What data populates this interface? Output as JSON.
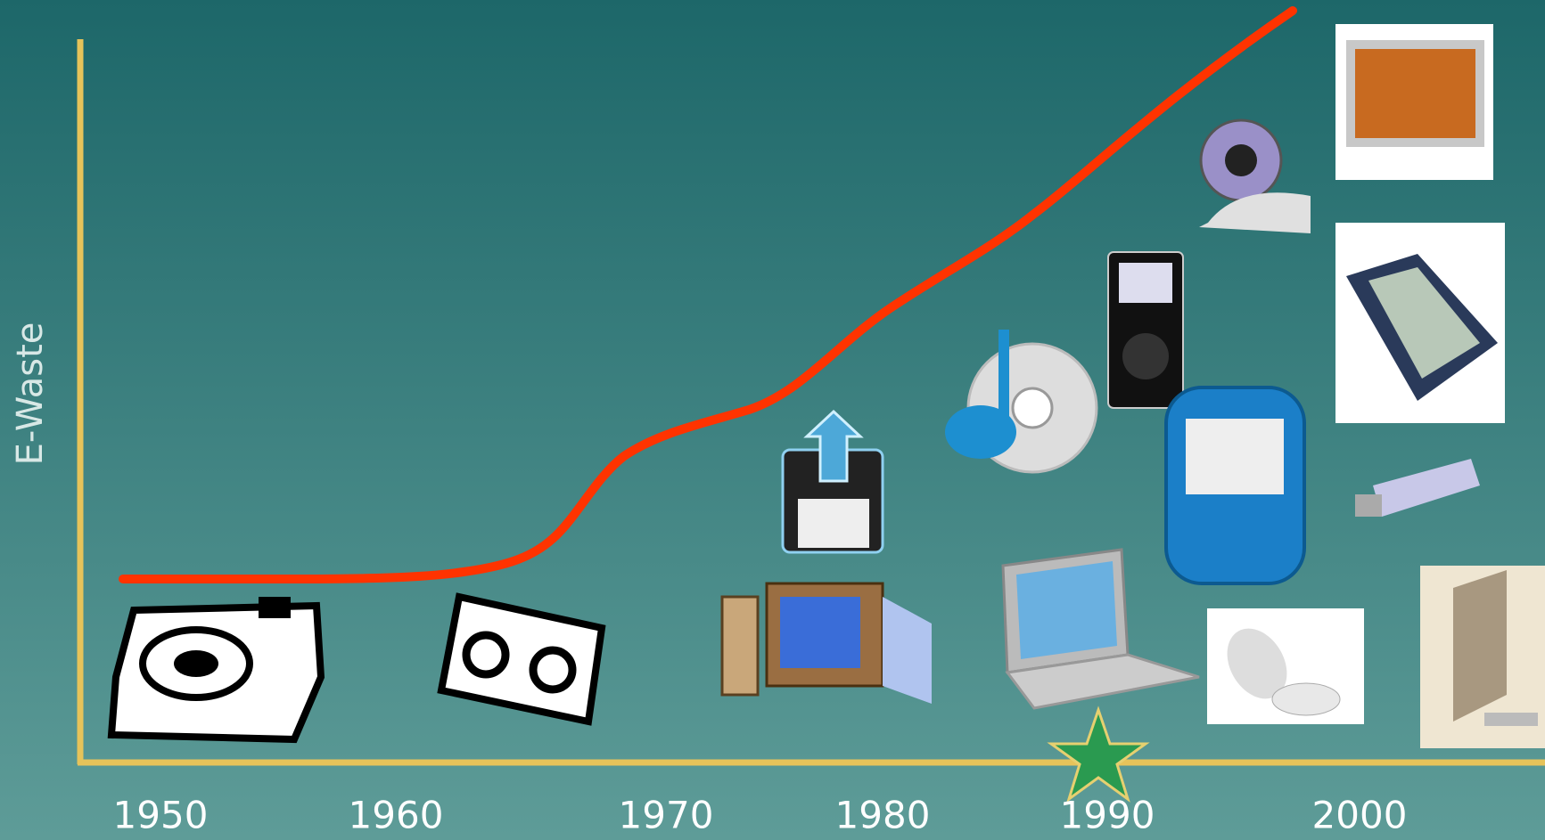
{
  "y_axis_label": "E-Waste",
  "x_labels": [
    "1950",
    "1960",
    "1970",
    "1980",
    "1990",
    "2000"
  ]
}
